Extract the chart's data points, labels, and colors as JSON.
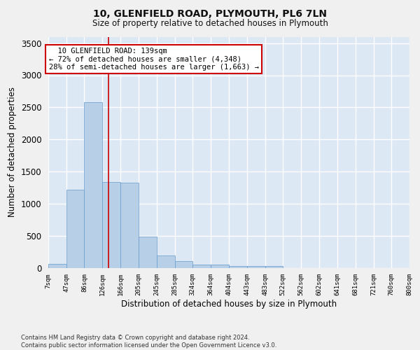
{
  "title": "10, GLENFIELD ROAD, PLYMOUTH, PL6 7LN",
  "subtitle": "Size of property relative to detached houses in Plymouth",
  "xlabel": "Distribution of detached houses by size in Plymouth",
  "ylabel": "Number of detached properties",
  "annotation_line1": "  10 GLENFIELD ROAD: 139sqm  ",
  "annotation_line2": "← 72% of detached houses are smaller (4,348)",
  "annotation_line3": "28% of semi-detached houses are larger (1,663) →",
  "property_size_sqm": 139,
  "bin_edges": [
    7,
    47,
    86,
    126,
    166,
    205,
    245,
    285,
    324,
    364,
    404,
    443,
    483,
    522,
    562,
    602,
    641,
    681,
    721,
    760,
    800
  ],
  "bar_heights": [
    55,
    1220,
    2580,
    1340,
    1330,
    490,
    190,
    105,
    50,
    50,
    30,
    30,
    30,
    0,
    0,
    0,
    0,
    0,
    0,
    0
  ],
  "bar_color": "#b8cfe8",
  "bar_edge_color": "#6699cc",
  "annotation_box_color": "#cc0000",
  "vertical_line_color": "#cc0000",
  "background_color": "#dde8f5",
  "grid_color": "#ffffff",
  "fig_background": "#f0f0f0",
  "ylim": [
    0,
    3600
  ],
  "yticks": [
    0,
    500,
    1000,
    1500,
    2000,
    2500,
    3000,
    3500
  ],
  "footer_line1": "Contains HM Land Registry data © Crown copyright and database right 2024.",
  "footer_line2": "Contains public sector information licensed under the Open Government Licence v3.0."
}
